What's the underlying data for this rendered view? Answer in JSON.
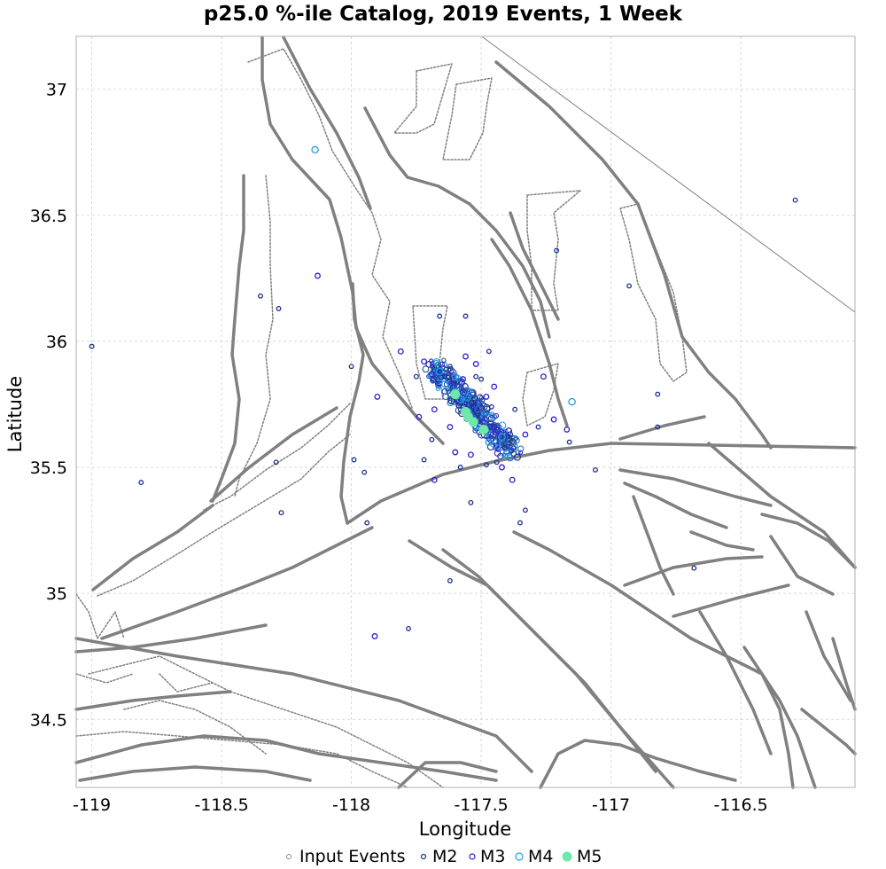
{
  "chart_data": {
    "type": "scatter",
    "title": "p25.0 %-ile Catalog, 2019 Events, 1 Week",
    "xlabel": "Longitude",
    "ylabel": "Latitude",
    "xlim": [
      -119.06,
      -116.06
    ],
    "ylim": [
      34.23,
      37.21
    ],
    "xticks": [
      -119,
      -118.5,
      -118,
      -117.5,
      -117,
      -116.5
    ],
    "yticks": [
      34.5,
      35,
      35.5,
      36,
      36.5,
      37
    ],
    "xtick_labels": [
      "-119",
      "-118.5",
      "-118",
      "-117.5",
      "-117",
      "-116.5"
    ],
    "ytick_labels": [
      "34.5",
      "35",
      "35.5",
      "36",
      "36.5",
      "37"
    ],
    "grid": true,
    "legend_position": "bottom-center",
    "legend": [
      "Input Events",
      "M2",
      "M3",
      "M4",
      "M5"
    ],
    "series_colors": {
      "Input Events": "#888888",
      "M2": "#1c2f8f",
      "M3": "#3020d0",
      "M4": "#1ea0e0",
      "M5": "#6ee8a8"
    },
    "fault_color": "#808080",
    "series": [
      {
        "name": "M2",
        "style": "hollow",
        "points": [
          [
            -119.0,
            35.98
          ],
          [
            -118.81,
            35.44
          ],
          [
            -118.35,
            36.18
          ],
          [
            -118.28,
            36.13
          ],
          [
            -118.27,
            35.32
          ],
          [
            -118.29,
            35.52
          ],
          [
            -118.0,
            35.9
          ],
          [
            -117.99,
            35.53
          ],
          [
            -117.95,
            35.48
          ],
          [
            -117.94,
            35.28
          ],
          [
            -117.78,
            34.86
          ],
          [
            -117.75,
            35.86
          ],
          [
            -117.66,
            36.1
          ],
          [
            -117.56,
            36.1
          ],
          [
            -117.62,
            35.05
          ],
          [
            -117.54,
            35.36
          ],
          [
            -117.47,
            35.96
          ],
          [
            -117.44,
            35.52
          ],
          [
            -117.41,
            35.58
          ],
          [
            -117.35,
            35.28
          ],
          [
            -117.33,
            35.33
          ],
          [
            -117.21,
            36.36
          ],
          [
            -117.16,
            35.6
          ],
          [
            -117.06,
            35.49
          ],
          [
            -116.93,
            36.22
          ],
          [
            -116.82,
            35.79
          ],
          [
            -116.82,
            35.66
          ],
          [
            -116.68,
            35.1
          ],
          [
            -116.29,
            36.56
          ],
          [
            -117.5,
            35.85
          ],
          [
            -117.46,
            35.74
          ],
          [
            -117.37,
            35.73
          ],
          [
            -117.28,
            35.66
          ],
          [
            -117.72,
            35.53
          ],
          [
            -117.69,
            35.61
          ],
          [
            -117.58,
            35.5
          ],
          [
            -117.48,
            35.51
          ],
          [
            -117.52,
            35.86
          ],
          [
            -117.64,
            35.86
          ],
          [
            -117.62,
            35.9
          ]
        ]
      },
      {
        "name": "M3",
        "style": "hollow",
        "points": [
          [
            -118.13,
            36.26
          ],
          [
            -117.91,
            34.83
          ],
          [
            -117.9,
            35.78
          ],
          [
            -117.81,
            35.96
          ],
          [
            -117.74,
            35.7
          ],
          [
            -117.72,
            35.92
          ],
          [
            -117.68,
            35.45
          ],
          [
            -117.69,
            35.87
          ],
          [
            -117.57,
            35.85
          ],
          [
            -117.54,
            35.55
          ],
          [
            -117.52,
            35.91
          ],
          [
            -117.45,
            35.82
          ],
          [
            -117.42,
            35.5
          ],
          [
            -117.38,
            35.45
          ],
          [
            -117.33,
            35.63
          ],
          [
            -117.22,
            35.69
          ],
          [
            -117.17,
            35.65
          ],
          [
            -117.26,
            35.86
          ],
          [
            -117.68,
            35.73
          ],
          [
            -117.62,
            35.66
          ],
          [
            -117.56,
            35.94
          ],
          [
            -117.48,
            35.78
          ],
          [
            -117.45,
            35.66
          ],
          [
            -117.66,
            35.88
          ],
          [
            -117.6,
            35.56
          ]
        ]
      },
      {
        "name": "M4",
        "style": "hollow",
        "points": [
          [
            -118.14,
            36.76
          ],
          [
            -117.15,
            35.76
          ],
          [
            -117.64,
            35.83
          ],
          [
            -117.58,
            35.77
          ],
          [
            -117.52,
            35.66
          ],
          [
            -117.55,
            35.72
          ],
          [
            -117.47,
            35.6
          ],
          [
            -117.66,
            35.88
          ],
          [
            -117.42,
            35.62
          ],
          [
            -117.6,
            35.86
          ]
        ]
      },
      {
        "name": "M5",
        "style": "filled",
        "points": [
          [
            -117.6,
            35.79
          ],
          [
            -117.56,
            35.72
          ],
          [
            -117.55,
            35.7
          ],
          [
            -117.53,
            35.68
          ],
          [
            -117.49,
            35.65
          ]
        ]
      }
    ]
  }
}
